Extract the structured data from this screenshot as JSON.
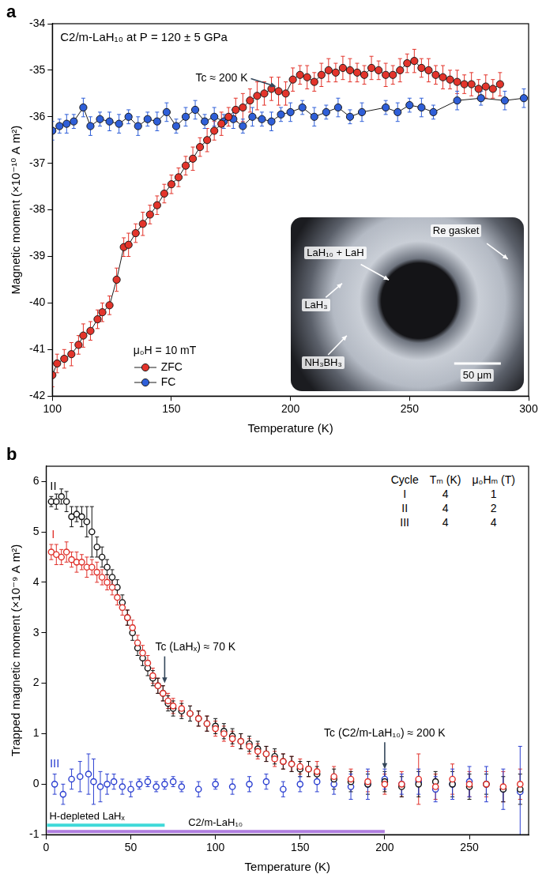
{
  "chart_data": [
    {
      "panel": "a",
      "type": "scatter",
      "title": "C2/m-LaH₁₀ at P = 120 ± 5 GPa",
      "x_label": "Temperature (K)",
      "y_label": "Magnetic moment (×10⁻¹⁰ A m²)",
      "xlim": [
        100,
        300
      ],
      "xticks": [
        100,
        150,
        200,
        250,
        300
      ],
      "ylim": [
        -42,
        -34
      ],
      "yticks": [
        -42,
        -41,
        -40,
        -39,
        -38,
        -37,
        -36,
        -35,
        -34
      ],
      "grid": false,
      "legend": "lower left",
      "legend_title": "μ₀H = 10 mT",
      "annotations": [
        {
          "text": "Tc ≈ 200 K",
          "x": 194,
          "y": -35.35
        }
      ],
      "inset": {
        "labels": [
          "Re gasket",
          "LaH₁₀ + LaH",
          "LaH₃",
          "NH₃BH₃"
        ],
        "scale_bar": "50 μm"
      },
      "series": [
        {
          "name": "ZFC",
          "color": "#e3342b",
          "marker": "circle",
          "line_style": "solid",
          "x": [
            100,
            102,
            105,
            108,
            111,
            113,
            116,
            119,
            121,
            124,
            127,
            130,
            132,
            135,
            138,
            141,
            144,
            147,
            150,
            153,
            156,
            159,
            162,
            165,
            168,
            171,
            174,
            177,
            180,
            183,
            186,
            189,
            192,
            195,
            198,
            201,
            204,
            207,
            210,
            213,
            216,
            219,
            222,
            225,
            228,
            231,
            234,
            237,
            240,
            243,
            246,
            249,
            252,
            255,
            258,
            261,
            264,
            267,
            270,
            273,
            276,
            279,
            282,
            285,
            288
          ],
          "values": [
            -41.55,
            -41.3,
            -41.2,
            -41.1,
            -40.9,
            -40.7,
            -40.6,
            -40.35,
            -40.2,
            -40.05,
            -39.5,
            -38.8,
            -38.75,
            -38.5,
            -38.3,
            -38.1,
            -37.9,
            -37.65,
            -37.45,
            -37.3,
            -37.05,
            -36.9,
            -36.65,
            -36.5,
            -36.3,
            -36.15,
            -36.0,
            -35.85,
            -35.8,
            -35.65,
            -35.55,
            -35.5,
            -35.4,
            -35.45,
            -35.5,
            -35.2,
            -35.1,
            -35.15,
            -35.25,
            -35.1,
            -35.0,
            -35.05,
            -34.95,
            -35.0,
            -35.05,
            -35.1,
            -34.95,
            -35.0,
            -35.1,
            -35.1,
            -35.0,
            -34.85,
            -34.8,
            -34.95,
            -35.0,
            -35.1,
            -35.15,
            -35.2,
            -35.25,
            -35.3,
            -35.3,
            -35.4,
            -35.35,
            -35.4,
            -35.3
          ],
          "errors": [
            0.25,
            0.2,
            0.2,
            0.25,
            0.2,
            0.25,
            0.2,
            0.2,
            0.2,
            0.2,
            0.25,
            0.2,
            0.25,
            0.2,
            0.25,
            0.2,
            0.2,
            0.2,
            0.2,
            0.2,
            0.2,
            0.25,
            0.2,
            0.25,
            0.2,
            0.25,
            0.2,
            0.25,
            0.3,
            0.25,
            0.3,
            0.25,
            0.25,
            0.3,
            0.25,
            0.25,
            0.2,
            0.25,
            0.2,
            0.25,
            0.25,
            0.2,
            0.25,
            0.25,
            0.2,
            0.2,
            0.25,
            0.2,
            0.25,
            0.2,
            0.25,
            0.2,
            0.25,
            0.2,
            0.25,
            0.2,
            0.25,
            0.2,
            0.25,
            0.2,
            0.25,
            0.2,
            0.25,
            0.2,
            0.25
          ]
        },
        {
          "name": "FC",
          "color": "#2f5fd8",
          "marker": "circle",
          "line_style": "solid",
          "x": [
            100,
            103,
            106,
            109,
            113,
            116,
            120,
            124,
            128,
            132,
            136,
            140,
            144,
            148,
            152,
            156,
            160,
            164,
            168,
            172,
            176,
            180,
            184,
            188,
            192,
            196,
            200,
            205,
            210,
            215,
            220,
            225,
            230,
            240,
            245,
            250,
            255,
            260,
            270,
            280,
            290,
            298
          ],
          "values": [
            -36.3,
            -36.2,
            -36.15,
            -36.1,
            -35.8,
            -36.2,
            -36.05,
            -36.1,
            -36.15,
            -36.0,
            -36.2,
            -36.05,
            -36.1,
            -35.9,
            -36.2,
            -36.0,
            -35.85,
            -36.1,
            -36.0,
            -36.1,
            -36.05,
            -36.2,
            -36.0,
            -36.05,
            -36.1,
            -35.95,
            -35.9,
            -35.8,
            -36.0,
            -35.9,
            -35.8,
            -36.0,
            -35.9,
            -35.8,
            -35.9,
            -35.75,
            -35.8,
            -35.9,
            -35.65,
            -35.6,
            -35.65,
            -35.6
          ],
          "errors": [
            0.2,
            0.15,
            0.2,
            0.15,
            0.2,
            0.2,
            0.15,
            0.2,
            0.2,
            0.15,
            0.2,
            0.15,
            0.2,
            0.2,
            0.15,
            0.2,
            0.2,
            0.15,
            0.2,
            0.15,
            0.2,
            0.15,
            0.2,
            0.15,
            0.2,
            0.15,
            0.2,
            0.15,
            0.2,
            0.15,
            0.2,
            0.15,
            0.2,
            0.15,
            0.2,
            0.15,
            0.2,
            0.15,
            0.2,
            0.15,
            0.2,
            0.2
          ]
        }
      ]
    },
    {
      "panel": "b",
      "type": "scatter",
      "x_label": "Temperature (K)",
      "y_label": "Trapped magnetic moment (×10⁻⁹ A m²)",
      "xlim": [
        0,
        285
      ],
      "xticks": [
        0,
        50,
        100,
        150,
        200,
        250
      ],
      "ylim": [
        -1,
        6.3
      ],
      "yticks": [
        -1,
        0,
        1,
        2,
        3,
        4,
        5,
        6
      ],
      "grid": false,
      "table": {
        "columns": [
          "Cycle",
          "Tₘ (K)",
          "μ₀Hₘ (T)"
        ],
        "rows": [
          [
            "I",
            4,
            1
          ],
          [
            "II",
            4,
            2
          ],
          [
            "III",
            4,
            4
          ]
        ]
      },
      "annotations": [
        {
          "text": "Tc (LaHₓ) ≈ 70 K",
          "x": 70,
          "y": 2.0
        },
        {
          "text": "Tc (C2/m-LaH₁₀) ≈ 200 K",
          "x": 200,
          "y": 0.3
        }
      ],
      "ranges": [
        {
          "label": "H-depleted LaHₓ",
          "from": 0,
          "to": 70,
          "color": "#3fd9d9"
        },
        {
          "label": "C2/m-LaH₁₀",
          "from": 0,
          "to": 200,
          "color": "#b07ee0"
        }
      ],
      "series": [
        {
          "name": "I",
          "color": "#e0312b",
          "marker": "open circle",
          "line_style": "none",
          "x": [
            3,
            6,
            9,
            12,
            15,
            18,
            21,
            24,
            27,
            30,
            33,
            36,
            39,
            42,
            45,
            48,
            51,
            54,
            57,
            60,
            63,
            66,
            69,
            72,
            75,
            80,
            85,
            90,
            95,
            100,
            105,
            110,
            115,
            120,
            125,
            130,
            135,
            140,
            145,
            150,
            155,
            160,
            170,
            180,
            190,
            200,
            210,
            220,
            230,
            240,
            250,
            260,
            270,
            280
          ],
          "values": [
            4.6,
            4.55,
            4.5,
            4.6,
            4.45,
            4.4,
            4.4,
            4.3,
            4.3,
            4.2,
            4.1,
            4.0,
            3.9,
            3.7,
            3.5,
            3.3,
            3.1,
            2.8,
            2.6,
            2.4,
            2.15,
            1.95,
            1.8,
            1.65,
            1.55,
            1.5,
            1.4,
            1.3,
            1.2,
            1.1,
            1.0,
            0.9,
            0.85,
            0.75,
            0.65,
            0.6,
            0.5,
            0.45,
            0.4,
            0.35,
            0.3,
            0.25,
            0.15,
            0.1,
            0.05,
            0.0,
            0.0,
            0.1,
            -0.05,
            0.1,
            0.0,
            0.0,
            -0.05,
            0.0
          ],
          "errors": [
            0.15,
            0.2,
            0.15,
            0.2,
            0.15,
            0.2,
            0.15,
            0.2,
            0.15,
            0.2,
            0.15,
            0.15,
            0.15,
            0.15,
            0.15,
            0.15,
            0.15,
            0.15,
            0.15,
            0.15,
            0.15,
            0.15,
            0.15,
            0.15,
            0.15,
            0.15,
            0.15,
            0.15,
            0.15,
            0.15,
            0.15,
            0.15,
            0.15,
            0.15,
            0.15,
            0.15,
            0.15,
            0.15,
            0.15,
            0.15,
            0.15,
            0.2,
            0.2,
            0.2,
            0.2,
            0.2,
            0.25,
            0.5,
            0.25,
            0.3,
            0.25,
            0.25,
            0.3,
            0.3
          ]
        },
        {
          "name": "II",
          "color": "#111111",
          "marker": "open circle",
          "line_style": "none",
          "x": [
            3,
            6,
            9,
            12,
            15,
            18,
            21,
            24,
            27,
            30,
            33,
            36,
            39,
            42,
            45,
            48,
            51,
            54,
            57,
            60,
            63,
            66,
            69,
            72,
            75,
            80,
            85,
            90,
            95,
            100,
            105,
            110,
            115,
            120,
            125,
            130,
            135,
            140,
            145,
            150,
            155,
            160,
            170,
            180,
            190,
            200,
            210,
            220,
            230,
            240,
            250,
            260,
            270,
            280
          ],
          "values": [
            5.6,
            5.6,
            5.7,
            5.6,
            5.3,
            5.35,
            5.3,
            5.2,
            5.0,
            4.7,
            4.5,
            4.3,
            4.1,
            3.9,
            3.6,
            3.3,
            3.0,
            2.7,
            2.5,
            2.3,
            2.1,
            1.95,
            1.8,
            1.6,
            1.5,
            1.45,
            1.4,
            1.3,
            1.2,
            1.15,
            1.05,
            0.95,
            0.85,
            0.8,
            0.7,
            0.6,
            0.55,
            0.45,
            0.4,
            0.3,
            0.3,
            0.2,
            0.1,
            0.05,
            0.0,
            0.05,
            -0.05,
            0.0,
            0.05,
            0.0,
            -0.05,
            0.0,
            -0.1,
            -0.1
          ],
          "errors": [
            0.1,
            0.15,
            0.15,
            0.2,
            0.2,
            0.15,
            0.2,
            0.3,
            0.5,
            0.2,
            0.2,
            0.15,
            0.15,
            0.15,
            0.15,
            0.15,
            0.15,
            0.15,
            0.15,
            0.15,
            0.15,
            0.15,
            0.15,
            0.15,
            0.15,
            0.15,
            0.15,
            0.15,
            0.15,
            0.15,
            0.15,
            0.15,
            0.15,
            0.15,
            0.15,
            0.15,
            0.15,
            0.15,
            0.15,
            0.15,
            0.15,
            0.15,
            0.2,
            0.2,
            0.2,
            0.2,
            0.2,
            0.25,
            0.2,
            0.25,
            0.25,
            0.2,
            0.25,
            0.3
          ]
        },
        {
          "name": "III",
          "color": "#2b3fd1",
          "marker": "open circle",
          "line_style": "none",
          "x": [
            5,
            10,
            15,
            20,
            25,
            28,
            32,
            36,
            40,
            45,
            50,
            55,
            60,
            65,
            70,
            75,
            80,
            90,
            100,
            110,
            120,
            130,
            140,
            150,
            160,
            170,
            180,
            190,
            200,
            210,
            220,
            230,
            240,
            250,
            260,
            270,
            280
          ],
          "values": [
            0.0,
            -0.2,
            0.1,
            0.15,
            0.2,
            0.05,
            -0.05,
            0.0,
            0.05,
            -0.05,
            -0.1,
            0.0,
            0.05,
            -0.05,
            0.0,
            0.05,
            -0.05,
            -0.1,
            0.0,
            -0.05,
            0.0,
            0.05,
            -0.1,
            0.0,
            0.05,
            0.0,
            -0.05,
            0.0,
            0.1,
            0.0,
            0.05,
            -0.1,
            0.0,
            0.05,
            0.0,
            -0.1,
            -0.15
          ],
          "errors": [
            0.2,
            0.2,
            0.2,
            0.3,
            0.4,
            0.45,
            0.3,
            0.2,
            0.15,
            0.15,
            0.15,
            0.1,
            0.1,
            0.1,
            0.1,
            0.1,
            0.1,
            0.15,
            0.1,
            0.15,
            0.15,
            0.15,
            0.15,
            0.15,
            0.2,
            0.2,
            0.25,
            0.3,
            0.2,
            0.2,
            0.25,
            0.25,
            0.3,
            0.3,
            0.35,
            0.4,
            0.9
          ]
        }
      ]
    }
  ]
}
